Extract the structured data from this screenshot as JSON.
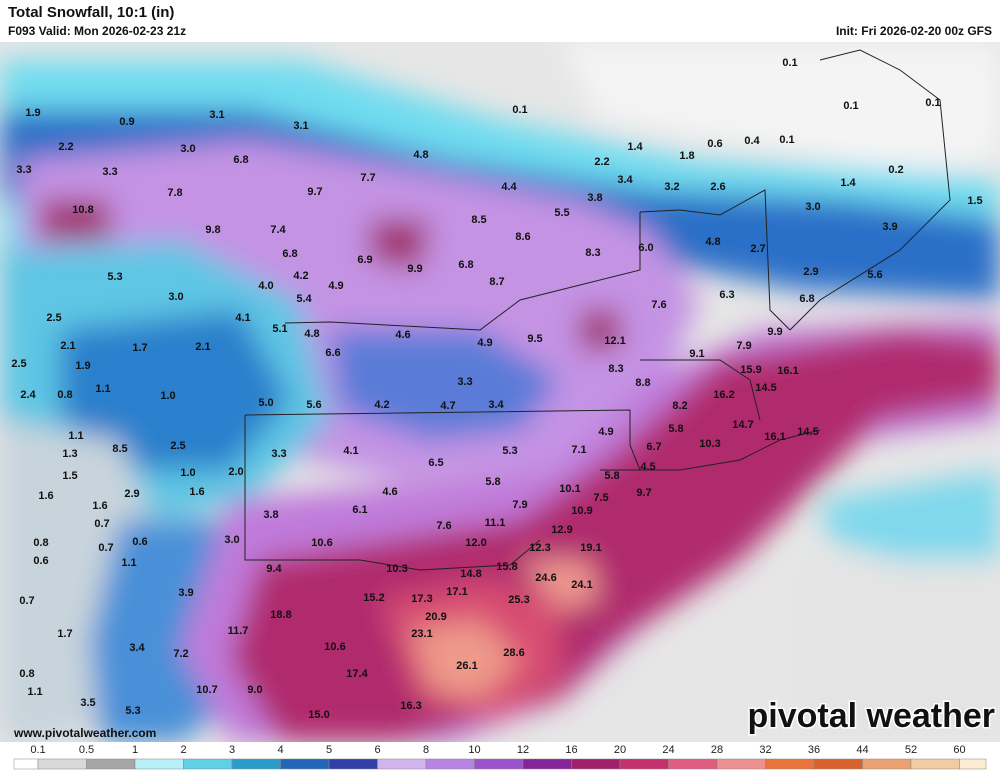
{
  "header": {
    "title": "Total Snowfall, 10:1 (in)",
    "valid": "F093 Valid: Mon 2026-02-23 21z",
    "init": "Init: Fri 2026-02-20 00z GFS"
  },
  "map": {
    "labels": [
      "0.1",
      "0.1",
      "0.9",
      "1.9",
      "3.1",
      "3.1",
      "2.2",
      "3.3",
      "3.0",
      "3.3",
      "6.8",
      "4.8",
      "2.2",
      "1.4",
      "1.8",
      "0.6",
      "0.4",
      "0.1",
      "0.1",
      "0.1",
      "0.2",
      "1.4",
      "7.7",
      "4.4",
      "3.4",
      "3.2",
      "2.6",
      "3.8",
      "7.8",
      "9.7",
      "10.8",
      "9.8",
      "7.4",
      "8.5",
      "5.5",
      "3.0",
      "1.5",
      "3.9",
      "8.6",
      "6.0",
      "4.8",
      "8.3",
      "2.7",
      "6.8",
      "6.9",
      "9.9",
      "6.8",
      "8.7",
      "2.9",
      "5.6",
      "5.3",
      "4.2",
      "4.0",
      "4.9",
      "5.4",
      "6.3",
      "6.8",
      "3.0",
      "2.5",
      "4.1",
      "5.1",
      "4.8",
      "4.6",
      "7.6",
      "9.9",
      "9.5",
      "12.1",
      "4.9",
      "2.1",
      "1.7",
      "2.1",
      "6.6",
      "7.9",
      "9.1",
      "15.9",
      "16.1",
      "2.5",
      "1.9",
      "8.3",
      "3.3",
      "8.8",
      "14.5",
      "2.4",
      "0.8",
      "1.1",
      "1.0",
      "5.0",
      "5.6",
      "4.2",
      "4.7",
      "3.4",
      "16.2",
      "8.2",
      "14.7",
      "16.1",
      "14.5",
      "1.1",
      "5.8",
      "4.9",
      "1.3",
      "8.5",
      "2.5",
      "4.1",
      "7.1",
      "6.7",
      "10.3",
      "5.3",
      "6.5",
      "3.3",
      "1.5",
      "1.0",
      "2.0",
      "5.8",
      "4.5",
      "5.8",
      "1.6",
      "1.6",
      "2.9",
      "4.6",
      "10.1",
      "9.7",
      "7.5",
      "1.6",
      "7.9",
      "6.1",
      "10.9",
      "3.8",
      "0.7",
      "11.1",
      "7.6",
      "12.9",
      "0.8",
      "0.7",
      "0.6",
      "3.0",
      "10.6",
      "12.0",
      "12.3",
      "19.1",
      "0.6",
      "1.1",
      "9.4",
      "10.3",
      "14.8",
      "15.8",
      "24.6",
      "24.1",
      "3.9",
      "15.2",
      "17.3",
      "17.1",
      "25.3",
      "0.7",
      "18.8",
      "20.9",
      "11.7",
      "23.1",
      "1.7",
      "3.4",
      "7.2",
      "10.6",
      "28.6",
      "26.1",
      "0.8",
      "17.4",
      "10.7",
      "9.0",
      "1.1",
      "3.5",
      "16.3",
      "15.0",
      "5.3"
    ]
  },
  "colorbar": {
    "labels": [
      "0.1",
      "0.5",
      "1",
      "2",
      "3",
      "4",
      "5",
      "6",
      "8",
      "10",
      "12",
      "16",
      "20",
      "24",
      "28",
      "32",
      "36",
      "44",
      "52",
      "60"
    ],
    "colors": [
      "#ffffff",
      "#d9d9d9",
      "#a6a6a6",
      "#b8f0fa",
      "#5fd0e6",
      "#2a9ccc",
      "#2166b8",
      "#3040a8",
      "#d2b4ee",
      "#b884e2",
      "#9c52cc",
      "#86229a",
      "#a0206c",
      "#c4306c",
      "#e05c80",
      "#ef9090",
      "#e8743c",
      "#d9622c",
      "#eaa070",
      "#f3cba2",
      "#faecd0"
    ]
  },
  "footer": {
    "website": "www.pivotalweather.com",
    "logo": "pivotal weather"
  }
}
